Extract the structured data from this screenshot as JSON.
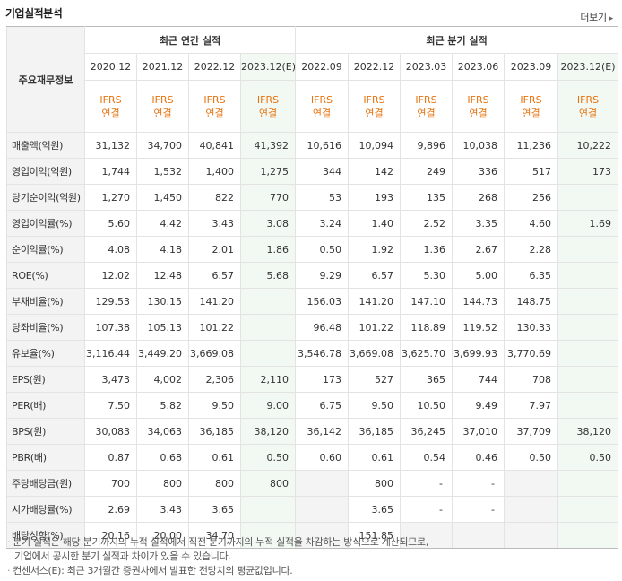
{
  "header": {
    "title": "기업실적분석",
    "more_label": "더보기"
  },
  "table": {
    "row_header_label": "주요재무정보",
    "annual_group_label": "최근 연간 실적",
    "quarter_group_label": "최근 분기 실적",
    "accounting_line1": "IFRS",
    "accounting_line2": "연결",
    "periods": [
      "2020.12",
      "2021.12",
      "2022.12",
      "2023.12(E)",
      "2022.09",
      "2022.12",
      "2023.03",
      "2023.06",
      "2023.09",
      "2023.12(E)"
    ],
    "rows": [
      {
        "label": "매출액(억원)",
        "values": [
          "31,132",
          "34,700",
          "40,841",
          "41,392",
          "10,616",
          "10,094",
          "9,896",
          "10,038",
          "11,236",
          "10,222"
        ]
      },
      {
        "label": "영업이익(억원)",
        "values": [
          "1,744",
          "1,532",
          "1,400",
          "1,275",
          "344",
          "142",
          "249",
          "336",
          "517",
          "173"
        ]
      },
      {
        "label": "당기순이익(억원)",
        "values": [
          "1,270",
          "1,450",
          "822",
          "770",
          "53",
          "193",
          "135",
          "268",
          "256",
          ""
        ]
      },
      {
        "label": "영업이익률(%)",
        "values": [
          "5.60",
          "4.42",
          "3.43",
          "3.08",
          "3.24",
          "1.40",
          "2.52",
          "3.35",
          "4.60",
          "1.69"
        ]
      },
      {
        "label": "순이익률(%)",
        "values": [
          "4.08",
          "4.18",
          "2.01",
          "1.86",
          "0.50",
          "1.92",
          "1.36",
          "2.67",
          "2.28",
          ""
        ]
      },
      {
        "label": "ROE(%)",
        "values": [
          "12.02",
          "12.48",
          "6.57",
          "5.68",
          "9.29",
          "6.57",
          "5.30",
          "5.00",
          "6.35",
          ""
        ]
      },
      {
        "label": "부채비율(%)",
        "values": [
          "129.53",
          "130.15",
          "141.20",
          "",
          "156.03",
          "141.20",
          "147.10",
          "144.73",
          "148.75",
          ""
        ]
      },
      {
        "label": "당좌비율(%)",
        "values": [
          "107.38",
          "105.13",
          "101.22",
          "",
          "96.48",
          "101.22",
          "118.89",
          "119.52",
          "130.33",
          ""
        ]
      },
      {
        "label": "유보율(%)",
        "values": [
          "3,116.44",
          "3,449.20",
          "3,669.08",
          "",
          "3,546.78",
          "3,669.08",
          "3,625.70",
          "3,699.93",
          "3,770.69",
          ""
        ]
      },
      {
        "label": "EPS(원)",
        "values": [
          "3,473",
          "4,002",
          "2,306",
          "2,110",
          "173",
          "527",
          "365",
          "744",
          "708",
          ""
        ]
      },
      {
        "label": "PER(배)",
        "values": [
          "7.50",
          "5.82",
          "9.50",
          "9.00",
          "6.75",
          "9.50",
          "10.50",
          "9.49",
          "7.97",
          ""
        ]
      },
      {
        "label": "BPS(원)",
        "values": [
          "30,083",
          "34,063",
          "36,185",
          "38,120",
          "36,142",
          "36,185",
          "36,245",
          "37,010",
          "37,709",
          "38,120"
        ]
      },
      {
        "label": "PBR(배)",
        "values": [
          "0.87",
          "0.68",
          "0.61",
          "0.50",
          "0.60",
          "0.61",
          "0.54",
          "0.46",
          "0.50",
          "0.50"
        ]
      },
      {
        "label": "주당배당금(원)",
        "values": [
          "700",
          "800",
          "800",
          "800",
          "",
          "800",
          "-",
          "-",
          "",
          ""
        ]
      },
      {
        "label": "시가배당률(%)",
        "values": [
          "2.69",
          "3.43",
          "3.65",
          "",
          "",
          "3.65",
          "-",
          "-",
          "",
          ""
        ]
      },
      {
        "label": "배당성향(%)",
        "values": [
          "20.16",
          "20.00",
          "34.70",
          "",
          "",
          "151.85",
          "",
          "",
          "",
          ""
        ]
      }
    ]
  },
  "notes": [
    "분기 실적은 해당 분기까지의 누적 실적에서 직전 분기까지의 누적 실적을 차감하는 방식으로 계산되므로,",
    "기업에서 공시한 분기 실적과 차이가 있을 수 있습니다.",
    "컨센서스(E): 최근 3개월간 증권사에서 발표한 전망치의 평균값입니다."
  ]
}
